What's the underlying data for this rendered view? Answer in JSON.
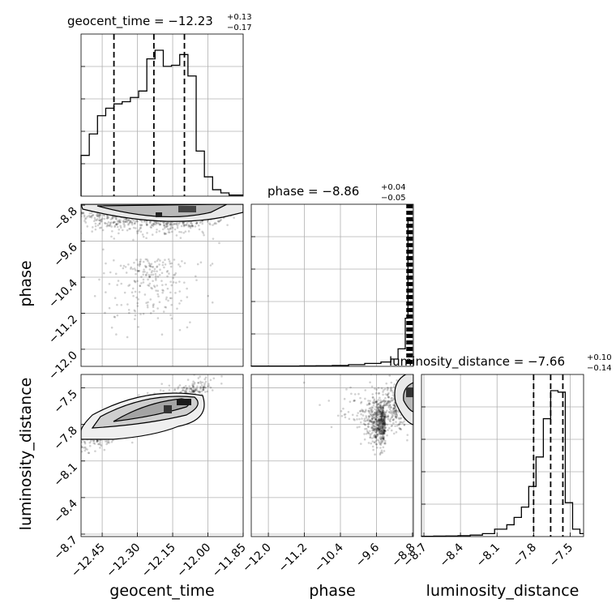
{
  "chart_data": {
    "type": "corner",
    "parameters": [
      "geocent_time",
      "phase",
      "luminosity_distance"
    ],
    "titles": [
      {
        "param": "geocent_time",
        "label": "geocent_time = ",
        "median": "−12.23",
        "plus": "+0.13",
        "minus": "−0.17"
      },
      {
        "param": "phase",
        "label": "phase = ",
        "median": "−8.86",
        "plus": "+0.04",
        "minus": "−0.05"
      },
      {
        "param": "luminosity_distance",
        "label": "luminosity_distance = ",
        "median": "−7.66",
        "plus": "+0.10",
        "minus": "−0.14"
      }
    ],
    "axes": {
      "geocent_time": {
        "range": [
          -12.54,
          -11.85
        ],
        "ticks": [
          -12.45,
          -12.3,
          -12.15,
          -12.0,
          -11.85
        ],
        "tick_labels": [
          "−12.45",
          "−12.30",
          "−12.15",
          "−12.00",
          "−11.85"
        ]
      },
      "phase": {
        "range": [
          -12.38,
          -8.78
        ],
        "ticks": [
          -12.0,
          -11.2,
          -10.4,
          -9.6,
          -8.8
        ],
        "tick_labels": [
          "−12.0",
          "−11.2",
          "−10.4",
          "−9.6",
          "−8.8"
        ]
      },
      "luminosity_distance": {
        "range": [
          -8.72,
          -7.39
        ],
        "ticks": [
          -8.7,
          -8.4,
          -8.1,
          -7.8,
          -7.5
        ],
        "tick_labels": [
          "−8.7",
          "−8.4",
          "−8.1",
          "−7.8",
          "−7.5"
        ]
      }
    },
    "histograms": {
      "geocent_time": {
        "edges": [
          -12.54,
          -12.505,
          -12.47,
          -12.435,
          -12.4,
          -12.365,
          -12.33,
          -12.295,
          -12.26,
          -12.225,
          -12.19,
          -12.155,
          -12.12,
          -12.085,
          -12.05,
          -12.015,
          -11.98,
          -11.945,
          -11.91,
          -11.875,
          -11.85
        ],
        "counts": [
          0.38,
          0.58,
          0.75,
          0.82,
          0.86,
          0.88,
          0.92,
          0.98,
          1.28,
          1.36,
          1.21,
          1.22,
          1.32,
          1.12,
          0.42,
          0.18,
          0.06,
          0.03,
          0.01,
          0.01
        ],
        "quantiles": [
          -12.4,
          -12.23,
          -12.1
        ]
      },
      "phase": {
        "edges": [
          -12.38,
          -12.02,
          -11.66,
          -11.3,
          -10.94,
          -10.58,
          -10.22,
          -9.86,
          -9.5,
          -9.28,
          -9.12,
          -8.96,
          -8.9,
          -8.84,
          -8.78
        ],
        "counts": [
          0.002,
          0.002,
          0.002,
          0.003,
          0.004,
          0.006,
          0.012,
          0.02,
          0.03,
          0.05,
          0.12,
          0.33,
          1.0,
          1.0
        ],
        "quantiles": [
          -8.91,
          -8.86,
          -8.82
        ]
      },
      "luminosity_distance": {
        "edges": [
          -8.72,
          -8.62,
          -8.52,
          -8.42,
          -8.32,
          -8.22,
          -8.12,
          -8.02,
          -7.96,
          -7.9,
          -7.84,
          -7.78,
          -7.72,
          -7.66,
          -7.6,
          -7.54,
          -7.48,
          -7.42,
          -7.39
        ],
        "counts": [
          0.002,
          0.003,
          0.004,
          0.006,
          0.01,
          0.02,
          0.05,
          0.08,
          0.13,
          0.2,
          0.34,
          0.54,
          0.8,
          0.99,
          0.98,
          0.23,
          0.05,
          0.02
        ],
        "quantiles": [
          -7.8,
          -7.66,
          -7.56
        ]
      }
    },
    "scatter_2d": {
      "phase_vs_geocent_time": {
        "cloud_centers": [
          [
            -12.2,
            -9.0
          ],
          [
            -12.1,
            -8.9
          ],
          [
            -12.4,
            -8.95
          ],
          [
            -12.25,
            -10.0
          ]
        ],
        "contour_levels": 3
      },
      "luminosity_distance_vs_geocent_time": {
        "cloud_centers": [
          [
            -12.3,
            -7.72
          ],
          [
            -12.1,
            -7.58
          ],
          [
            -12.45,
            -7.86
          ]
        ],
        "contour_levels": 3
      },
      "luminosity_distance_vs_phase": {
        "cloud_centers": [
          [
            -8.86,
            -7.66
          ],
          [
            -9.4,
            -7.8
          ]
        ],
        "contour_levels": 3
      }
    },
    "grid": true
  }
}
